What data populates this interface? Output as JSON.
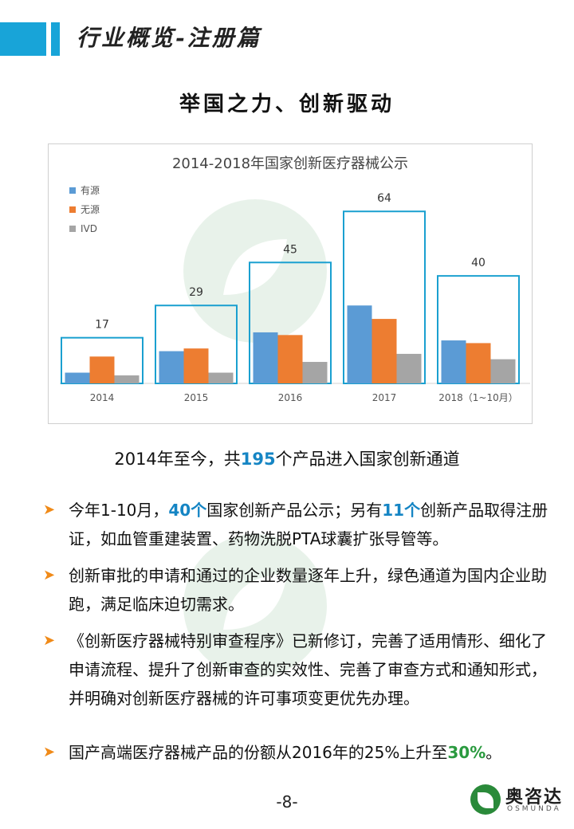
{
  "header": {
    "title": "行业概览-注册篇",
    "accent": "#18a4d8"
  },
  "subtitle": "举国之力、创新驱动",
  "chart_data": {
    "type": "bar",
    "title": "2014-2018年国家创新医疗器械公示",
    "categories": [
      "2014",
      "2015",
      "2016",
      "2017",
      "2018（1~10月）"
    ],
    "totals": [
      17,
      29,
      45,
      64,
      40
    ],
    "series": [
      {
        "name": "有源",
        "color": "#5b9bd5",
        "values": [
          4,
          12,
          19,
          29,
          16
        ]
      },
      {
        "name": "无源",
        "color": "#ed7d31",
        "values": [
          10,
          13,
          18,
          24,
          15
        ]
      },
      {
        "name": "IVD",
        "color": "#a5a5a5",
        "values": [
          3,
          4,
          8,
          11,
          9
        ]
      }
    ],
    "total_box_color": "#1aa0d0",
    "legend_position": "top-left",
    "grid": false
  },
  "summary": {
    "pre": "2014年至今，共",
    "num": "195",
    "post": "个产品进入国家创新通道"
  },
  "bullets": [
    {
      "p1": "今年1-10月，",
      "h1": "40个",
      "p2": "国家创新产品公示；另有",
      "h2": "11个",
      "p3": "创新产品取得注册证，如血管重建装置、药物洗脱PTA球囊扩张导管等。"
    },
    {
      "text": "创新审批的申请和通过的企业数量逐年上升，绿色通道为国内企业助跑，满足临床迫切需求。"
    },
    {
      "text": "《创新医疗器械特别审查程序》已新修订，完善了适用情形、细化了申请流程、提升了创新审查的实效性、完善了审查方式和通知形式，并明确对创新医疗器械的许可事项变更优先办理。"
    },
    {
      "p1": "国产高端医疗器械产品的份额从2016年的25%上升至",
      "h1": "30%",
      "p2": "。"
    }
  ],
  "page_number": "-8-",
  "logo": {
    "name": "奥咨达",
    "sub": "OSMUNDA"
  }
}
